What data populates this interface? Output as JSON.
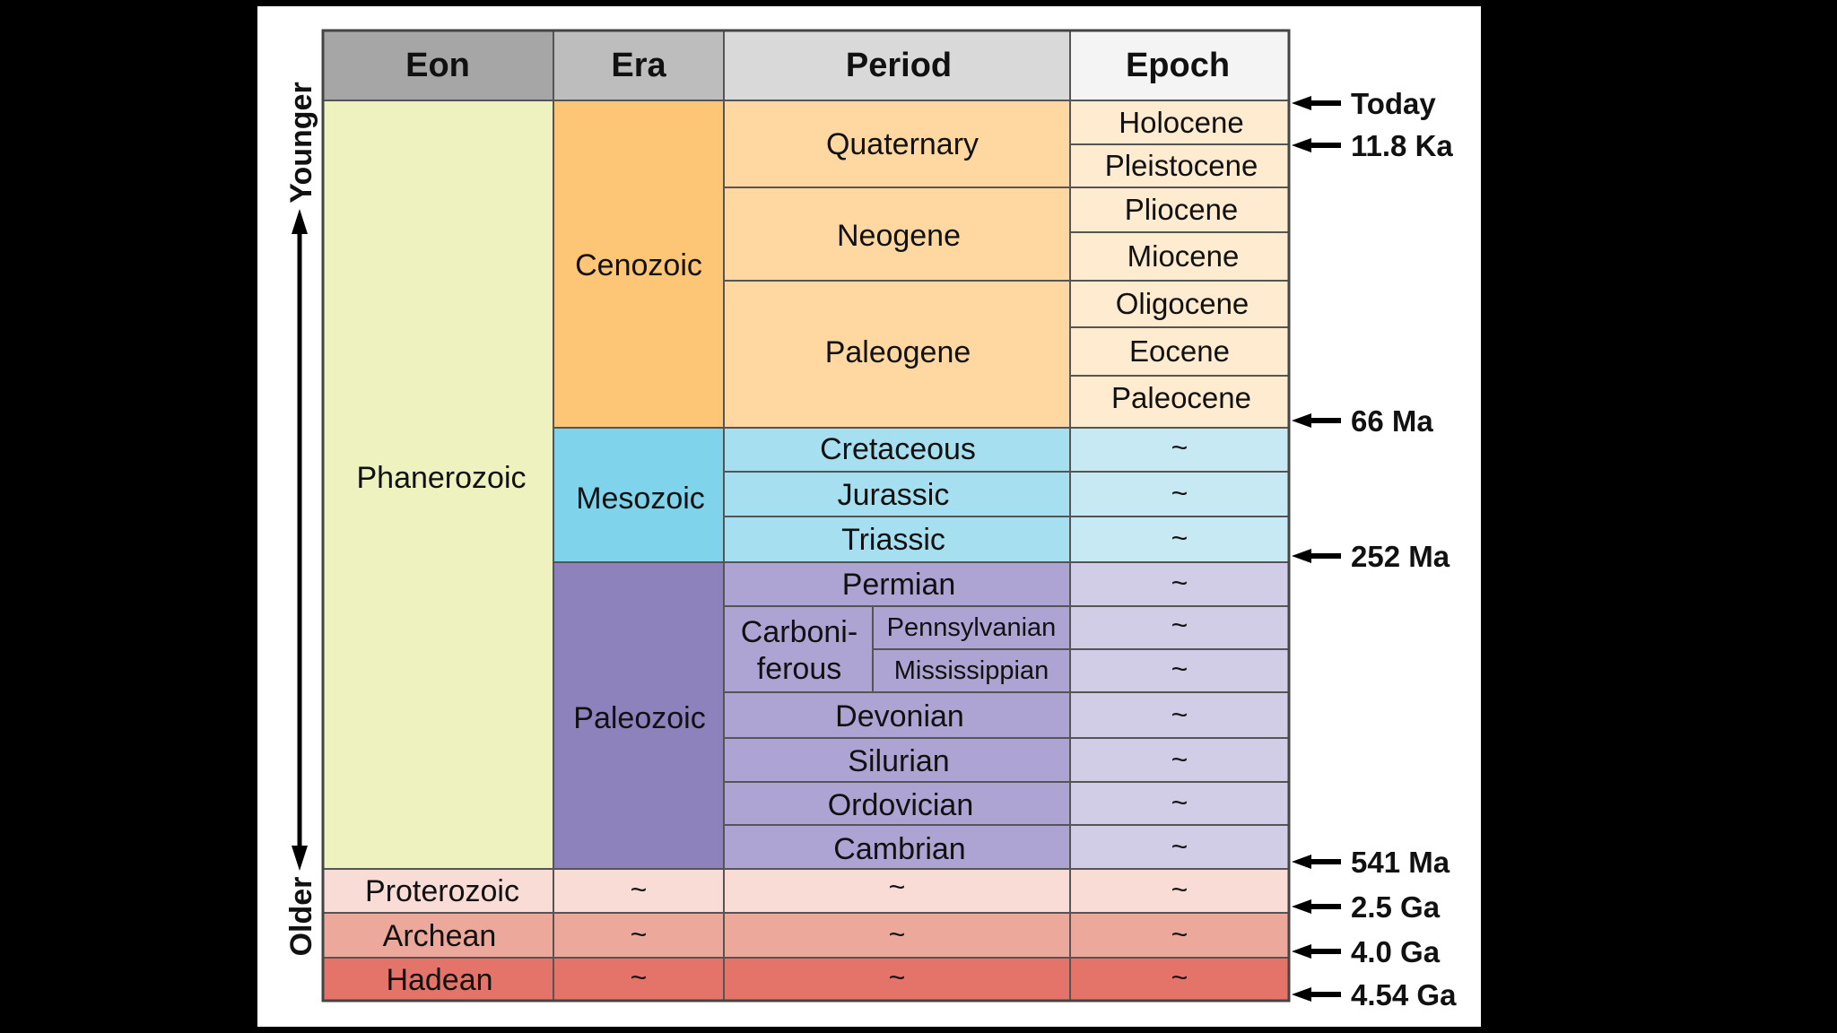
{
  "headers": {
    "eon": "Eon",
    "era": "Era",
    "period": "Period",
    "epoch": "Epoch"
  },
  "axis": {
    "younger": "Younger",
    "older": "Older"
  },
  "eons": {
    "phanerozoic": "Phanerozoic",
    "proterozoic": "Proterozoic",
    "archean": "Archean",
    "hadean": "Hadean"
  },
  "eras": {
    "cenozoic": "Cenozoic",
    "mesozoic": "Mesozoic",
    "paleozoic": "Paleozoic",
    "proterozoic": "~",
    "archean": "~",
    "hadean": "~"
  },
  "periods": {
    "quaternary": "Quaternary",
    "neogene": "Neogene",
    "paleogene": "Paleogene",
    "cretaceous": "Cretaceous",
    "jurassic": "Jurassic",
    "triassic": "Triassic",
    "permian": "Permian",
    "carboniferous_line1": "Carboni-",
    "carboniferous_line2": "ferous",
    "pennsylvanian": "Pennsylvanian",
    "mississippian": "Mississippian",
    "devonian": "Devonian",
    "silurian": "Silurian",
    "ordovician": "Ordovician",
    "cambrian": "Cambrian",
    "proterozoic": "~",
    "archean": "~",
    "hadean": "~"
  },
  "epochs": {
    "holocene": "Holocene",
    "pleistocene": "Pleistocene",
    "pliocene": "Pliocene",
    "miocene": "Miocene",
    "oligocene": "Oligocene",
    "eocene": "Eocene",
    "paleocene": "Paleocene",
    "cretaceous": "~",
    "jurassic": "~",
    "triassic": "~",
    "permian": "~",
    "pennsylvanian": "~",
    "mississippian": "~",
    "devonian": "~",
    "silurian": "~",
    "ordovician": "~",
    "cambrian": "~",
    "proterozoic": "~",
    "archean": "~",
    "hadean": "~"
  },
  "time_markers": {
    "today": "Today",
    "ka_11_8": "11.8 Ka",
    "ma_66": "66 Ma",
    "ma_252": "252 Ma",
    "ma_541": "541 Ma",
    "ga_2_5": "2.5 Ga",
    "ga_4_0": "4.0 Ga",
    "ga_4_54": "4.54 Ga"
  },
  "colors": {
    "background": "#000000",
    "card": "#ffffff",
    "header_eon": "#a6a6a6",
    "header_era": "#bdbdbd",
    "header_period": "#d9d9d9",
    "header_epoch": "#f4f4f4",
    "phanerozoic": "#eef2bf",
    "cenozoic": "#fdc576",
    "cenozoic_period": "#fed8a0",
    "cenozoic_epoch": "#ffebcf",
    "mesozoic": "#7fd3ea",
    "mesozoic_period": "#a6dff0",
    "mesozoic_epoch": "#c6e9f4",
    "paleozoic": "#8e82bd",
    "paleozoic_period": "#ada4d3",
    "paleozoic_epoch": "#d2cde7",
    "proterozoic": "#fadcd7",
    "archean": "#eca89a",
    "hadean": "#e4736a",
    "grid": "#555555"
  }
}
